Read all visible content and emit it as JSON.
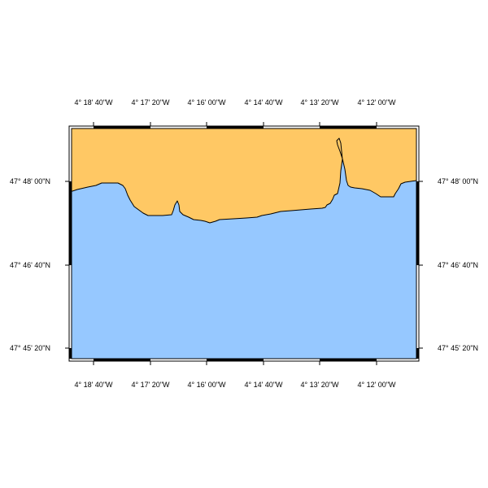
{
  "map": {
    "colors": {
      "land": "#FFC864",
      "water": "#96C8FF",
      "coastline": "#000000",
      "frame": "#000000",
      "background": "#FFFFFF"
    },
    "longitude_labels": [
      "4° 18' 40\"W",
      "4° 17' 20\"W",
      "4° 16' 00\"W",
      "4° 14' 40\"W",
      "4° 13' 20\"W",
      "4° 12' 00\"W"
    ],
    "latitude_labels": [
      "47° 48' 00\"N",
      "47° 46' 40\"N",
      "47° 45' 20\"N"
    ]
  }
}
